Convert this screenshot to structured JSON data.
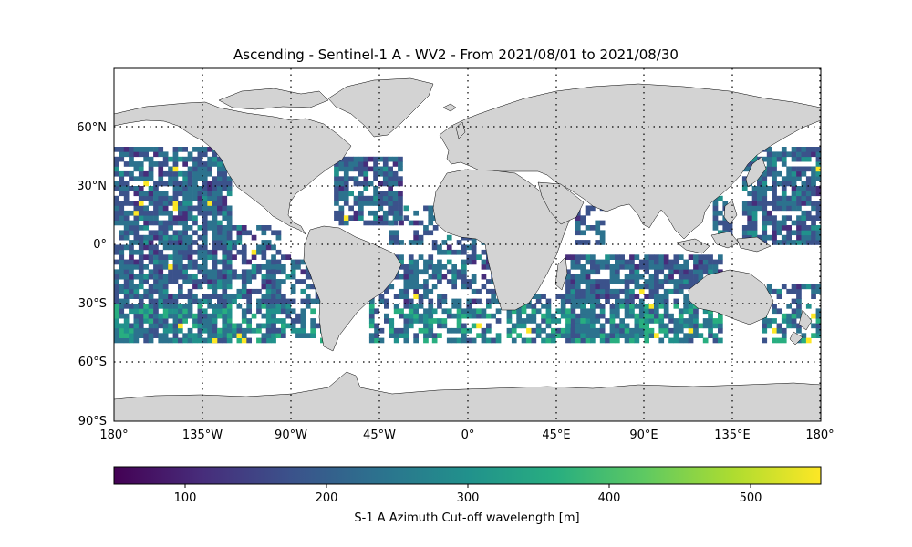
{
  "title": "Ascending - Sentinel-1 A - WV2 - From 2021/08/01 to 2021/08/30",
  "map": {
    "projection": "PlateCarree",
    "extent": {
      "lon": [
        -180,
        180
      ],
      "lat": [
        -90,
        90
      ]
    },
    "land_color": "#d3d3d3",
    "coastline_color": "#000000",
    "gridlines": "dotted",
    "lat_ticks": [
      "90°S",
      "60°S",
      "30°S",
      "0°",
      "30°N",
      "60°N"
    ],
    "lon_ticks": [
      "180°",
      "135°W",
      "90°W",
      "45°W",
      "0°",
      "45°E",
      "90°E",
      "135°E",
      "180°"
    ]
  },
  "colorbar": {
    "colormap": "viridis",
    "vmin": 50,
    "vmax": 550,
    "ticks": [
      "100",
      "200",
      "300",
      "400",
      "500"
    ],
    "label": "S-1 A Azimuth Cut-off wavelength [m]",
    "colors": [
      "#440154",
      "#472d7b",
      "#3b528b",
      "#2c728e",
      "#21918c",
      "#28ae80",
      "#5ec962",
      "#addc30",
      "#fde725"
    ]
  }
}
